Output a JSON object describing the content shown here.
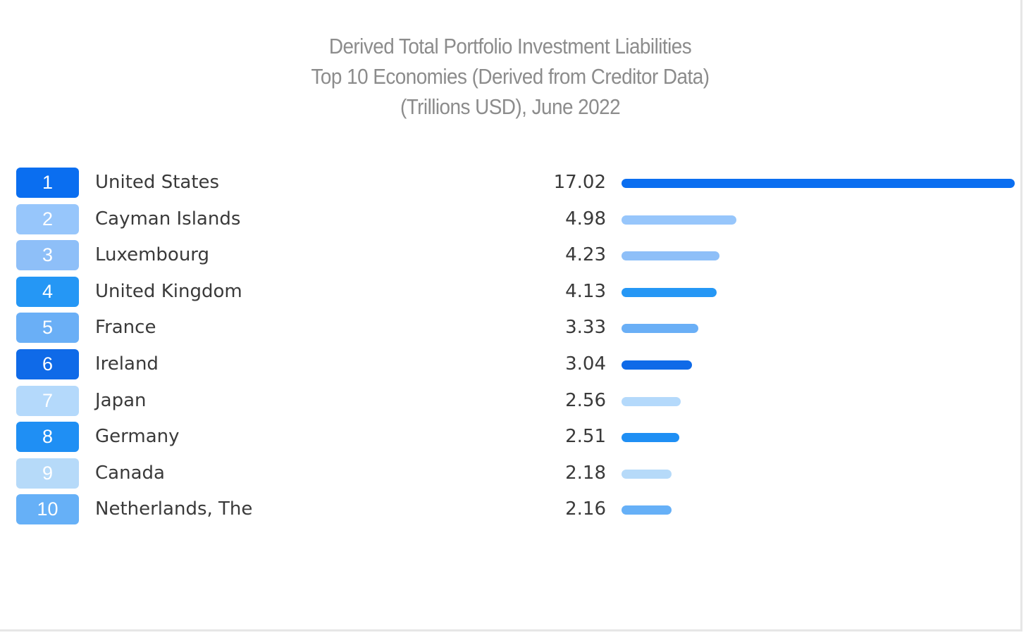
{
  "chart_data": {
    "type": "bar",
    "orientation": "horizontal",
    "title_lines": [
      "Derived Total Portfolio Investment Liabilities",
      "Top 10 Economies (Derived from Creditor Data)",
      "(Trillions USD), June 2022"
    ],
    "xlim": [
      0,
      17.02
    ],
    "rows": [
      {
        "rank": "1",
        "country": "United States",
        "value": 17.02,
        "label": "17.02",
        "color": "#0a6ef0"
      },
      {
        "rank": "2",
        "country": "Cayman Islands",
        "value": 4.98,
        "label": "4.98",
        "color": "#97c6fb"
      },
      {
        "rank": "3",
        "country": "Luxembourg",
        "value": 4.23,
        "label": "4.23",
        "color": "#8ebff8"
      },
      {
        "rank": "4",
        "country": "United Kingdom",
        "value": 4.13,
        "label": "4.13",
        "color": "#2597f5"
      },
      {
        "rank": "5",
        "country": "France",
        "value": 3.33,
        "label": "3.33",
        "color": "#6aaff6"
      },
      {
        "rank": "6",
        "country": "Ireland",
        "value": 3.04,
        "label": "3.04",
        "color": "#0f6ae8"
      },
      {
        "rank": "7",
        "country": "Japan",
        "value": 2.56,
        "label": "2.56",
        "color": "#b4d9fb"
      },
      {
        "rank": "8",
        "country": "Germany",
        "value": 2.51,
        "label": "2.51",
        "color": "#1f8ff4"
      },
      {
        "rank": "9",
        "country": "Canada",
        "value": 2.18,
        "label": "2.18",
        "color": "#b6daf9"
      },
      {
        "rank": "10",
        "country": "Netherlands, The",
        "value": 2.16,
        "label": "2.16",
        "color": "#66b0f7"
      }
    ]
  }
}
